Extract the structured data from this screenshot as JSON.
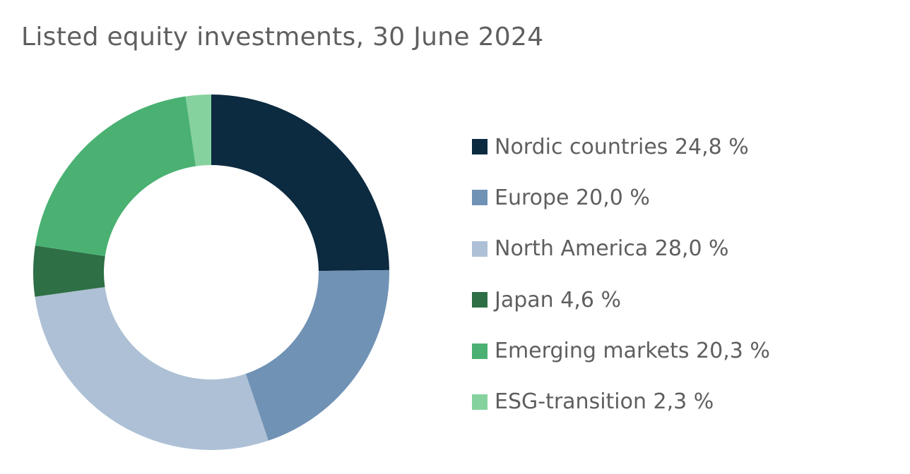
{
  "chart_data": {
    "type": "pie",
    "title": "Listed equity investments, 30 June 2024",
    "donut": true,
    "start_angle_deg": 0,
    "direction": "clockwise",
    "legend_position": "right",
    "unit": "%",
    "slices": [
      {
        "label": "Nordic countries 24,8 %",
        "value": 24.8,
        "color": "#0c2a40"
      },
      {
        "label": "Europe 20,0 %",
        "value": 20.0,
        "color": "#7092b5"
      },
      {
        "label": "North America 28,0 %",
        "value": 28.0,
        "color": "#adc0d5"
      },
      {
        "label": "Japan 4,6 %",
        "value": 4.6,
        "color": "#2e6f45"
      },
      {
        "label": "Emerging markets 20,3 %",
        "value": 20.3,
        "color": "#4ab173"
      },
      {
        "label": "ESG-transition 2,3 %",
        "value": 2.3,
        "color": "#86d29e"
      }
    ]
  }
}
